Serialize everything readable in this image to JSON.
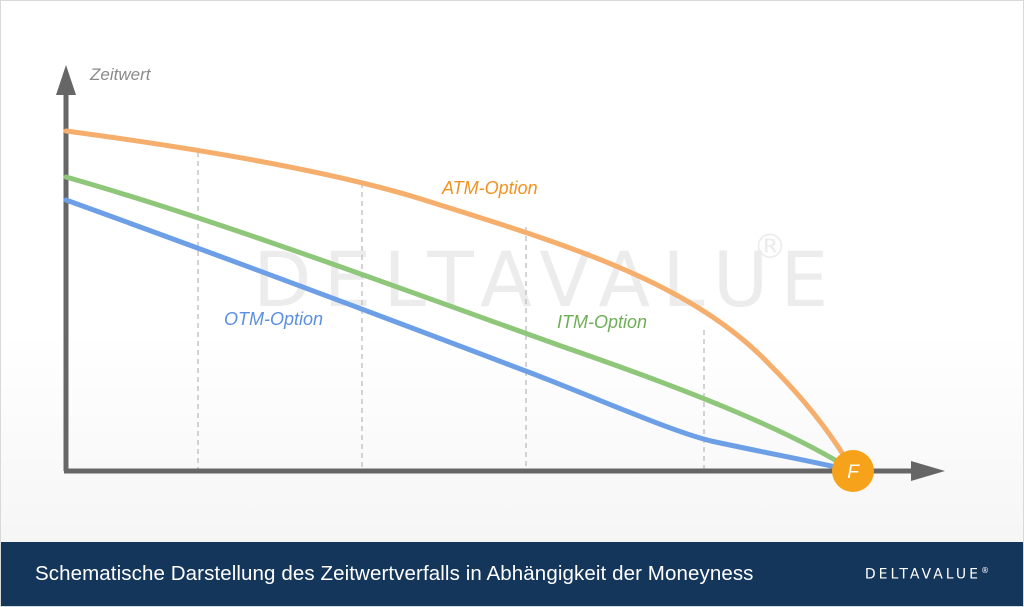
{
  "diagram": {
    "y_axis_label": "Zeitwert",
    "curves": [
      {
        "id": "atm",
        "label": "ATM-Option",
        "color": "#f5ae6c",
        "label_color": "#f29220"
      },
      {
        "id": "itm",
        "label": "ITM-Option",
        "color": "#8ec67a",
        "label_color": "#6fae57"
      },
      {
        "id": "otm",
        "label": "OTM-Option",
        "color": "#6d9fe6",
        "label_color": "#5b8fe0"
      }
    ],
    "endpoint": {
      "label": "F",
      "color": "#f7a21b"
    },
    "axis_color": "#666666",
    "gridline_color": "#bdbdbd",
    "watermark": {
      "text": "DELTAVALUE",
      "symbol": "®"
    }
  },
  "caption": {
    "text": "Schematische Darstellung des Zeitwertverfalls in Abhängigkeit der Moneyness",
    "logo_text": "DELTAVALUE",
    "logo_symbol": "®",
    "background_color": "#15365b"
  }
}
